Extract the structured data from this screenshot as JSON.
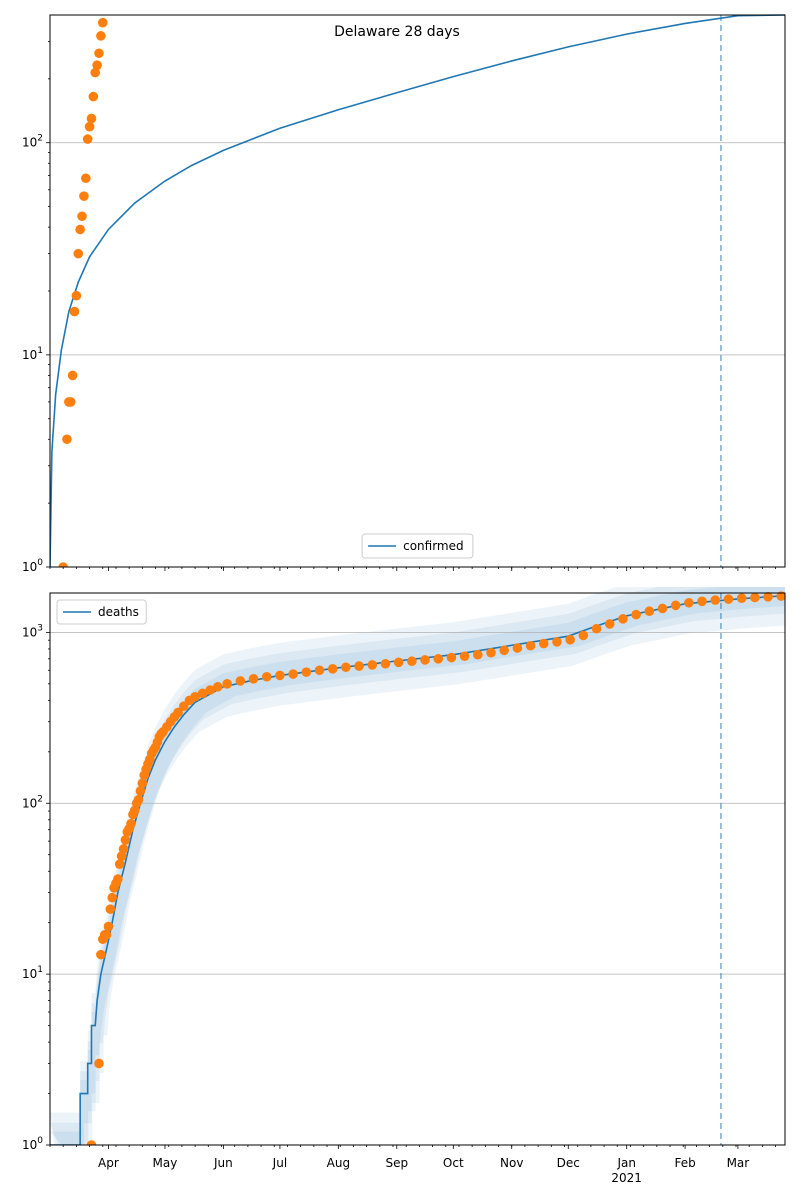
{
  "title": "Delaware 28 days",
  "colors": {
    "model": "#1f77b4",
    "observed": "#ff7f0e",
    "band": "#1f77b4",
    "grid": "#b0b0b0"
  },
  "date_axis": {
    "start": "2020-03-01",
    "end": "2021-03-26",
    "ticks": [
      {
        "date": "2020-04-01",
        "label": "Apr"
      },
      {
        "date": "2020-05-01",
        "label": "May"
      },
      {
        "date": "2020-06-01",
        "label": "Jun"
      },
      {
        "date": "2020-07-01",
        "label": "Jul"
      },
      {
        "date": "2020-08-01",
        "label": "Aug"
      },
      {
        "date": "2020-09-01",
        "label": "Sep"
      },
      {
        "date": "2020-10-01",
        "label": "Oct"
      },
      {
        "date": "2020-11-01",
        "label": "Nov"
      },
      {
        "date": "2020-12-01",
        "label": "Dec"
      },
      {
        "date": "2021-01-01",
        "label": "Jan"
      },
      {
        "date": "2021-02-01",
        "label": "Feb"
      },
      {
        "date": "2021-03-01",
        "label": "Mar"
      }
    ],
    "year_label": "2021",
    "year_label_date": "2021-01-01",
    "vline_date": "2021-02-20"
  },
  "chart_data": [
    {
      "type": "line",
      "panel": "top",
      "yscale": "log",
      "ylim": [
        1,
        400
      ],
      "ytick_labels": [
        {
          "value": 1,
          "label": "10^0"
        },
        {
          "value": 10,
          "label": "10^1"
        },
        {
          "value": 100,
          "label": "10^2"
        }
      ],
      "legend": {
        "label": "confirmed",
        "placement": "lower center"
      },
      "series": [
        {
          "name": "confirmed",
          "kind": "line",
          "points": [
            [
              "2020-03-01",
              1
            ],
            [
              "2020-03-02",
              3.5
            ],
            [
              "2020-03-04",
              6.5
            ],
            [
              "2020-03-07",
              10.5
            ],
            [
              "2020-03-11",
              16
            ],
            [
              "2020-03-16",
              22
            ],
            [
              "2020-03-22",
              29
            ],
            [
              "2020-04-01",
              39
            ],
            [
              "2020-04-15",
              52
            ],
            [
              "2020-05-01",
              66
            ],
            [
              "2020-05-15",
              78
            ],
            [
              "2020-06-01",
              92
            ],
            [
              "2020-07-01",
              117
            ],
            [
              "2020-08-01",
              143
            ],
            [
              "2020-09-01",
              172
            ],
            [
              "2020-10-01",
              205
            ],
            [
              "2020-11-01",
              243
            ],
            [
              "2020-12-01",
              283
            ],
            [
              "2021-01-01",
              325
            ],
            [
              "2021-02-01",
              365
            ],
            [
              "2021-03-01",
              397
            ],
            [
              "2021-03-26",
              400
            ]
          ]
        },
        {
          "name": "observed",
          "kind": "scatter",
          "points": [
            [
              "2020-03-08",
              1
            ],
            [
              "2020-03-10",
              4
            ],
            [
              "2020-03-11",
              6
            ],
            [
              "2020-03-12",
              6
            ],
            [
              "2020-03-13",
              8
            ],
            [
              "2020-03-14",
              16
            ],
            [
              "2020-03-15",
              19
            ],
            [
              "2020-03-16",
              30
            ],
            [
              "2020-03-17",
              39
            ],
            [
              "2020-03-18",
              45
            ],
            [
              "2020-03-19",
              56
            ],
            [
              "2020-03-20",
              68
            ],
            [
              "2020-03-21",
              104
            ],
            [
              "2020-03-22",
              119
            ],
            [
              "2020-03-23",
              130
            ],
            [
              "2020-03-24",
              165
            ],
            [
              "2020-03-25",
              214
            ],
            [
              "2020-03-26",
              232
            ],
            [
              "2020-03-27",
              264
            ],
            [
              "2020-03-28",
              319
            ],
            [
              "2020-03-29",
              368
            ]
          ]
        }
      ]
    },
    {
      "type": "line",
      "panel": "bottom",
      "yscale": "log",
      "ylim": [
        1,
        1700
      ],
      "ytick_labels": [
        {
          "value": 1,
          "label": "10^0"
        },
        {
          "value": 10,
          "label": "10^1"
        },
        {
          "value": 100,
          "label": "10^2"
        },
        {
          "value": 1000,
          "label": "10^3"
        }
      ],
      "legend": {
        "label": "deaths",
        "placement": "upper left"
      },
      "series": [
        {
          "name": "deaths",
          "kind": "line",
          "points": [
            [
              "2020-03-01",
              1
            ],
            [
              "2020-03-17",
              1
            ],
            [
              "2020-03-17",
              2
            ],
            [
              "2020-03-21",
              2
            ],
            [
              "2020-03-21",
              3
            ],
            [
              "2020-03-23",
              3
            ],
            [
              "2020-03-23",
              5
            ],
            [
              "2020-03-25",
              5
            ],
            [
              "2020-03-26",
              7
            ],
            [
              "2020-03-28",
              10
            ],
            [
              "2020-03-31",
              14
            ],
            [
              "2020-04-03",
              20
            ],
            [
              "2020-04-06",
              30
            ],
            [
              "2020-04-10",
              45
            ],
            [
              "2020-04-14",
              70
            ],
            [
              "2020-04-18",
              100
            ],
            [
              "2020-04-22",
              140
            ],
            [
              "2020-04-26",
              180
            ],
            [
              "2020-05-01",
              230
            ],
            [
              "2020-05-06",
              280
            ],
            [
              "2020-05-11",
              330
            ],
            [
              "2020-05-17",
              390
            ],
            [
              "2020-05-24",
              430
            ],
            [
              "2020-06-01",
              480
            ],
            [
              "2020-06-15",
              520
            ],
            [
              "2020-07-01",
              560
            ],
            [
              "2020-08-01",
              620
            ],
            [
              "2020-09-01",
              680
            ],
            [
              "2020-10-01",
              740
            ],
            [
              "2020-11-01",
              840
            ],
            [
              "2020-12-01",
              950
            ],
            [
              "2020-12-15",
              1080
            ],
            [
              "2021-01-01",
              1250
            ],
            [
              "2021-02-01",
              1470
            ],
            [
              "2021-03-01",
              1570
            ],
            [
              "2021-03-26",
              1640
            ]
          ]
        },
        {
          "name": "observed",
          "kind": "scatter",
          "points": [
            [
              "2020-03-23",
              1
            ],
            [
              "2020-03-27",
              3
            ],
            [
              "2020-03-28",
              13
            ],
            [
              "2020-03-29",
              16
            ],
            [
              "2020-03-30",
              17
            ],
            [
              "2020-03-31",
              17
            ],
            [
              "2020-04-01",
              19
            ],
            [
              "2020-04-02",
              24
            ],
            [
              "2020-04-03",
              28
            ],
            [
              "2020-04-04",
              32
            ],
            [
              "2020-04-05",
              34
            ],
            [
              "2020-04-06",
              36
            ],
            [
              "2020-04-07",
              44
            ],
            [
              "2020-04-08",
              49
            ],
            [
              "2020-04-09",
              54
            ],
            [
              "2020-04-10",
              61
            ],
            [
              "2020-04-11",
              68
            ],
            [
              "2020-04-12",
              71
            ],
            [
              "2020-04-13",
              76
            ],
            [
              "2020-04-14",
              86
            ],
            [
              "2020-04-15",
              91
            ],
            [
              "2020-04-16",
              100
            ],
            [
              "2020-04-17",
              105
            ],
            [
              "2020-04-18",
              118
            ],
            [
              "2020-04-19",
              131
            ],
            [
              "2020-04-20",
              146
            ],
            [
              "2020-04-21",
              158
            ],
            [
              "2020-04-22",
              170
            ],
            [
              "2020-04-23",
              181
            ],
            [
              "2020-04-24",
              196
            ],
            [
              "2020-04-25",
              205
            ],
            [
              "2020-04-26",
              213
            ],
            [
              "2020-04-27",
              228
            ],
            [
              "2020-04-28",
              245
            ],
            [
              "2020-04-29",
              255
            ],
            [
              "2020-04-30",
              262
            ],
            [
              "2020-05-02",
              280
            ],
            [
              "2020-05-04",
              300
            ],
            [
              "2020-05-06",
              320
            ],
            [
              "2020-05-08",
              340
            ],
            [
              "2020-05-11",
              370
            ],
            [
              "2020-05-14",
              400
            ],
            [
              "2020-05-17",
              420
            ],
            [
              "2020-05-21",
              440
            ],
            [
              "2020-05-25",
              460
            ],
            [
              "2020-05-29",
              480
            ],
            [
              "2020-06-03",
              500
            ],
            [
              "2020-06-10",
              520
            ],
            [
              "2020-06-17",
              535
            ],
            [
              "2020-06-24",
              550
            ],
            [
              "2020-07-01",
              560
            ],
            [
              "2020-07-08",
              570
            ],
            [
              "2020-07-15",
              585
            ],
            [
              "2020-07-22",
              600
            ],
            [
              "2020-07-29",
              612
            ],
            [
              "2020-08-05",
              625
            ],
            [
              "2020-08-12",
              635
            ],
            [
              "2020-08-19",
              645
            ],
            [
              "2020-08-26",
              655
            ],
            [
              "2020-09-02",
              668
            ],
            [
              "2020-09-09",
              678
            ],
            [
              "2020-09-16",
              690
            ],
            [
              "2020-09-23",
              700
            ],
            [
              "2020-09-30",
              712
            ],
            [
              "2020-10-07",
              725
            ],
            [
              "2020-10-14",
              740
            ],
            [
              "2020-10-21",
              760
            ],
            [
              "2020-10-28",
              785
            ],
            [
              "2020-11-04",
              810
            ],
            [
              "2020-11-11",
              835
            ],
            [
              "2020-11-18",
              860
            ],
            [
              "2020-11-25",
              880
            ],
            [
              "2020-12-02",
              905
            ],
            [
              "2020-12-09",
              960
            ],
            [
              "2020-12-16",
              1050
            ],
            [
              "2020-12-23",
              1120
            ],
            [
              "2020-12-30",
              1200
            ],
            [
              "2021-01-06",
              1270
            ],
            [
              "2021-01-13",
              1330
            ],
            [
              "2021-01-20",
              1380
            ],
            [
              "2021-01-27",
              1440
            ],
            [
              "2021-02-03",
              1490
            ],
            [
              "2021-02-10",
              1520
            ],
            [
              "2021-02-17",
              1545
            ],
            [
              "2021-02-24",
              1565
            ],
            [
              "2021-03-03",
              1585
            ],
            [
              "2021-03-10",
              1600
            ],
            [
              "2021-03-17",
              1615
            ],
            [
              "2021-03-24",
              1630
            ]
          ]
        }
      ]
    }
  ]
}
